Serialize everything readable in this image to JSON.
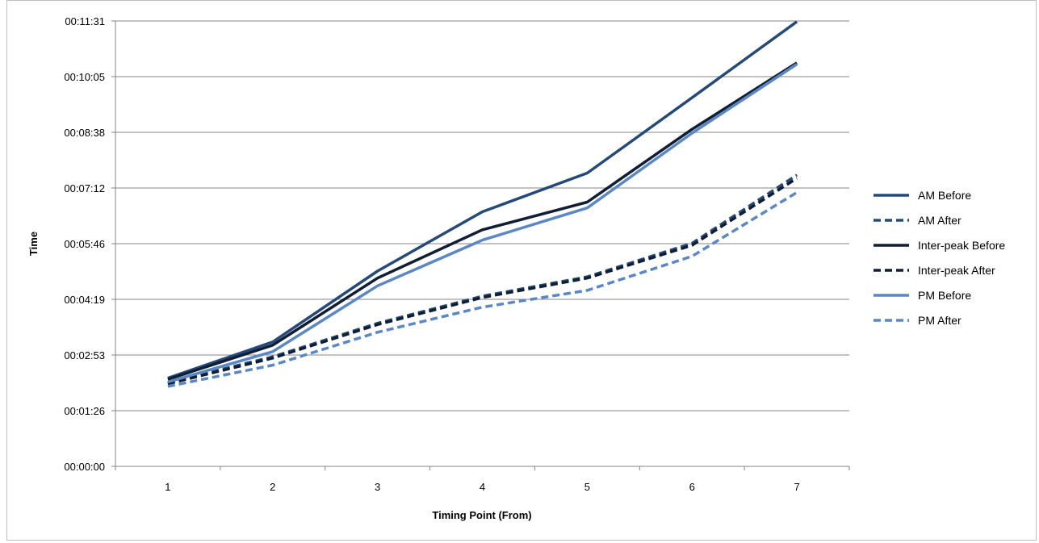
{
  "chart_data": {
    "type": "line",
    "title": "",
    "xlabel": "Timing Point (From)",
    "ylabel": "Time",
    "categories": [
      "1",
      "2",
      "3",
      "4",
      "5",
      "6",
      "7"
    ],
    "y_ticks": [
      "00:00:00",
      "00:01:26",
      "00:02:53",
      "00:04:19",
      "00:05:46",
      "00:07:12",
      "00:08:38",
      "00:10:05",
      "00:11:31"
    ],
    "ylim_seconds": [
      0,
      691
    ],
    "grid": true,
    "legend_position": "right",
    "series": [
      {
        "name": "AM Before",
        "color": "#254a7a",
        "dash": "solid",
        "values_seconds": [
          137,
          193,
          303,
          395,
          455,
          572,
          690
        ]
      },
      {
        "name": "AM After",
        "color": "#254a7a",
        "dash": "dashed",
        "values_seconds": [
          130,
          170,
          222,
          264,
          294,
          346,
          452
        ]
      },
      {
        "name": "Inter-peak Before",
        "color": "#0f1e33",
        "dash": "solid",
        "values_seconds": [
          135,
          188,
          292,
          367,
          410,
          523,
          626
        ]
      },
      {
        "name": "Inter-peak After",
        "color": "#0f1e33",
        "dash": "dashed",
        "values_seconds": [
          128,
          168,
          220,
          262,
          292,
          343,
          447
        ]
      },
      {
        "name": "PM Before",
        "color": "#5a87c5",
        "dash": "solid",
        "values_seconds": [
          131,
          178,
          280,
          351,
          401,
          517,
          624
        ]
      },
      {
        "name": "PM After",
        "color": "#5a87c5",
        "dash": "dashed",
        "values_seconds": [
          124,
          157,
          208,
          247,
          273,
          326,
          425
        ]
      }
    ]
  }
}
